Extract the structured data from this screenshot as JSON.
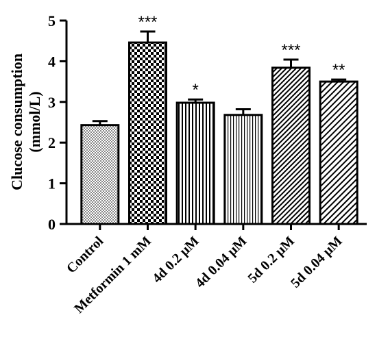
{
  "chart_data": {
    "type": "bar",
    "ylabel_line1": "Clucose consumption",
    "ylabel_line2": "(mmol/L)",
    "xlabel": "",
    "ylim": [
      0,
      5
    ],
    "yticks": [
      "0",
      "1",
      "2",
      "3",
      "4",
      "5"
    ],
    "categories": [
      "Control",
      "Metformin 1 mM",
      "4d 0.2 μM",
      "4d 0.04 μM",
      "5d 0.2 μM",
      "5d 0.04 μM"
    ],
    "values": [
      2.43,
      4.46,
      2.98,
      2.68,
      3.84,
      3.5
    ],
    "errors": [
      0.1,
      0.27,
      0.08,
      0.14,
      0.2,
      0.05
    ],
    "significance": [
      "",
      "***",
      "*",
      "",
      "***",
      "**"
    ],
    "patterns": [
      "crosshatch-fine",
      "checkerboard",
      "vertical-lines",
      "vertical-lines-fine",
      "diagonal-dense",
      "diagonal"
    ],
    "grid": false
  }
}
